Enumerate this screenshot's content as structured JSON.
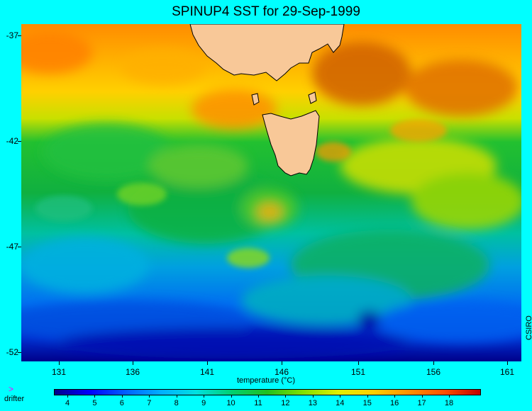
{
  "title": "SPINUP4 SST for 29-Sep-1999",
  "credit": "CSIRO",
  "map": {
    "lon_range": [
      129.3,
      161.5
    ],
    "lat_range": [
      -52.5,
      -36.5
    ],
    "y_ticks": [
      "-37",
      "-42",
      "-47",
      "-52"
    ],
    "x_ticks": [
      "131",
      "136",
      "141",
      "146",
      "151",
      "156",
      "161"
    ],
    "land_color": "#f8c898",
    "coast_color": "#000000"
  },
  "legend": {
    "label": "temperature (°C)",
    "ticks": [
      "4",
      "5",
      "6",
      "7",
      "8",
      "9",
      "10",
      "11",
      "12",
      "13",
      "14",
      "15",
      "16",
      "17",
      "18"
    ],
    "colors": [
      "#00008b",
      "#0000ff",
      "#0060ff",
      "#00b0ff",
      "#00e0e0",
      "#00d070",
      "#20c020",
      "#80e000",
      "#e0f000",
      "#ffd000",
      "#ff9000",
      "#ff5000",
      "#c00000"
    ]
  },
  "drifter": {
    "marker": ">",
    "label": "drifter",
    "color": "#ff00ff"
  }
}
